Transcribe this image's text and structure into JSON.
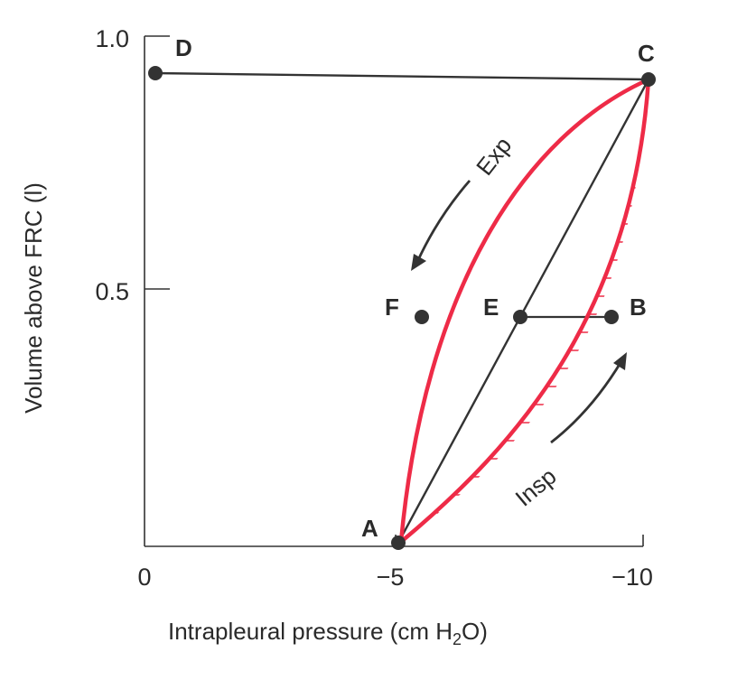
{
  "figure": {
    "x_axis": {
      "title_main": "Intrapleural pressure (cm H",
      "title_sub": "2",
      "title_end": "O)",
      "ticks": [
        "0",
        "−5",
        "−10"
      ]
    },
    "y_axis": {
      "title": "Volume above FRC (l)",
      "ticks": [
        "1.0",
        "0.5"
      ]
    },
    "points": {
      "A": "A",
      "B": "B",
      "C": "C",
      "D": "D",
      "E": "E",
      "F": "F"
    },
    "curve_labels": {
      "inspiration": "Insp",
      "expiration": "Exp"
    },
    "colors": {
      "curve": "#ee2b47",
      "hatch": "#ee2b47",
      "line": "#333333",
      "point": "#333333",
      "text": "#2a2a2a"
    }
  }
}
